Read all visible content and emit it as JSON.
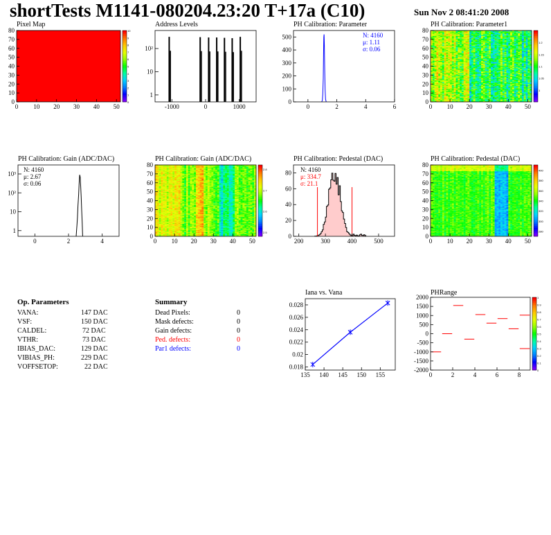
{
  "header": {
    "title": "shortTests M1141-080204.23:20 T+17a (C10)",
    "date": "Sun Nov  2 08:41:20 2008"
  },
  "colors": {
    "pixel_map": "#ff0000",
    "hist_line": "#000000",
    "blue_stat": "#0000ff",
    "red_stat": "#ff0000",
    "pedestal_fill": "#ffcccc",
    "iana_line": "#0000ff",
    "phrange_mark": "#ff0000"
  },
  "op_parameters": {
    "heading": "Op. Parameters",
    "rows": [
      {
        "name": "VANA:",
        "value": "147 DAC"
      },
      {
        "name": "VSF:",
        "value": "150 DAC"
      },
      {
        "name": "CALDEL:",
        "value": "72 DAC"
      },
      {
        "name": "VTHR:",
        "value": "73 DAC"
      },
      {
        "name": "IBIAS_DAC:",
        "value": "129 DAC"
      },
      {
        "name": "VIBIAS_PH:",
        "value": "229 DAC"
      },
      {
        "name": "VOFFSETOP:",
        "value": "22 DAC"
      }
    ]
  },
  "summary": {
    "heading": "Summary",
    "rows": [
      {
        "name": "Dead Pixels:",
        "value": "0",
        "color": "#000000"
      },
      {
        "name": "Mask defects:",
        "value": "0",
        "color": "#000000"
      },
      {
        "name": "Gain defects:",
        "value": "0",
        "color": "#000000"
      },
      {
        "name": "Ped. defects:",
        "value": "0",
        "color": "#ff0000"
      },
      {
        "name": "Par1 defects:",
        "value": "0",
        "color": "#0000ff"
      }
    ]
  },
  "chart_data": [
    {
      "id": "pixel_map",
      "type": "heatmap",
      "title": "Pixel Map",
      "xlim": [
        0,
        52
      ],
      "ylim": [
        0,
        80
      ],
      "xticks": [
        "0",
        "10",
        "20",
        "30",
        "40",
        "50"
      ],
      "yticks": [
        "0",
        "10",
        "20",
        "30",
        "40",
        "50",
        "60",
        "70",
        "80"
      ],
      "zlim": [
        0,
        10
      ],
      "zticks": [
        "0",
        "1",
        "2",
        "3",
        "4",
        "5",
        "6",
        "7",
        "8",
        "9",
        "10"
      ],
      "uniform_value": 10
    },
    {
      "id": "address_levels",
      "type": "bar",
      "title": "Address Levels",
      "xlim": [
        -1500,
        1500
      ],
      "ylog": true,
      "xticks": [
        "-1000",
        "0",
        "1000"
      ],
      "yticks": [
        "1",
        "10",
        "10²"
      ],
      "peaks": [
        {
          "x": -1080,
          "count": 320
        },
        {
          "x": -160,
          "count": 310
        },
        {
          "x": 90,
          "count": 300
        },
        {
          "x": 330,
          "count": 300
        },
        {
          "x": 560,
          "count": 290
        },
        {
          "x": 790,
          "count": 280
        },
        {
          "x": 1030,
          "count": 320
        }
      ]
    },
    {
      "id": "ph_param",
      "type": "histogram",
      "title": "PH Calibration: Parameter",
      "xlim": [
        -1,
        6
      ],
      "ylim": [
        0,
        550
      ],
      "xticks": [
        "0",
        "2",
        "4",
        "6"
      ],
      "yticks": [
        "0",
        "100",
        "200",
        "300",
        "400",
        "500"
      ],
      "stats": {
        "n": "N: 4160",
        "mean": "μ: 1.11",
        "sigma": "σ: 0.06",
        "color": "#0000ff"
      },
      "mean": 1.11,
      "sigma": 0.06,
      "peak": 520
    },
    {
      "id": "ph_param1",
      "type": "heatmap",
      "title": "PH Calibration: Parameter1",
      "xlim": [
        0,
        52
      ],
      "ylim": [
        0,
        80
      ],
      "xticks": [
        "0",
        "10",
        "20",
        "30",
        "40",
        "50"
      ],
      "yticks": [
        "0",
        "10",
        "20",
        "30",
        "40",
        "50",
        "60",
        "70",
        "80"
      ],
      "zlim": [
        0.95,
        1.25
      ],
      "zticks": [
        "1",
        "1.05",
        "1.1",
        "1.15",
        "1.2"
      ]
    },
    {
      "id": "gain_hist",
      "type": "histogram",
      "title": "PH Calibration: Gain (ADC/DAC)",
      "xlim": [
        -1,
        5
      ],
      "ylog": true,
      "xticks": [
        "0",
        "2",
        "4"
      ],
      "yticks": [
        "1",
        "10",
        "10²",
        "10³"
      ],
      "stats": {
        "n": "N: 4160",
        "mean": "μ: 2.67",
        "sigma": "σ: 0.06",
        "color": "#000000"
      },
      "mean": 2.67,
      "sigma": 0.06,
      "peak": 900
    },
    {
      "id": "gain_map",
      "type": "heatmap",
      "title": "PH Calibration: Gain (ADC/DAC)",
      "xlim": [
        0,
        52
      ],
      "ylim": [
        0,
        80
      ],
      "xticks": [
        "0",
        "10",
        "20",
        "30",
        "40",
        "50"
      ],
      "yticks": [
        "0",
        "10",
        "20",
        "30",
        "40",
        "50",
        "60",
        "70",
        "80"
      ],
      "zlim": [
        2.48,
        2.82
      ],
      "zticks": [
        "2.5",
        "2.6",
        "2.7",
        "2.8"
      ]
    },
    {
      "id": "ped_hist",
      "type": "histogram",
      "title": "PH Calibration: Pedestal (DAC)",
      "xlim": [
        180,
        560
      ],
      "ylim": [
        0,
        90
      ],
      "xticks": [
        "200",
        "300",
        "400",
        "500"
      ],
      "yticks": [
        "0",
        "20",
        "40",
        "60",
        "80"
      ],
      "stats": {
        "n": "N: 4160",
        "mean": "μ: 334.7",
        "sigma": "σ: 21.1"
      },
      "mean": 334.7,
      "sigma": 21.1,
      "peak": 85,
      "cut_lines": [
        270,
        400
      ]
    },
    {
      "id": "ped_map",
      "type": "heatmap",
      "title": "PH Calibration: Pedestal (DAC)",
      "xlim": [
        0,
        52
      ],
      "ylim": [
        0,
        80
      ],
      "xticks": [
        "0",
        "10",
        "20",
        "30",
        "40",
        "50"
      ],
      "yticks": [
        "0",
        "10",
        "20",
        "30",
        "40",
        "50",
        "60",
        "70",
        "80"
      ],
      "zlim": [
        270,
        410
      ],
      "zticks": [
        "280",
        "300",
        "320",
        "340",
        "360",
        "380",
        "400"
      ]
    },
    {
      "id": "iana_vana",
      "type": "line",
      "title": "Iana vs. Vana",
      "xlim": [
        135,
        159
      ],
      "ylim": [
        0.0175,
        0.029
      ],
      "xticks": [
        "135",
        "140",
        "145",
        "150",
        "155"
      ],
      "yticks": [
        "0.018",
        "0.02",
        "0.022",
        "0.024",
        "0.026",
        "0.028"
      ],
      "points": [
        {
          "x": 137,
          "y": 0.0184
        },
        {
          "x": 147,
          "y": 0.0236
        },
        {
          "x": 157,
          "y": 0.0283
        }
      ]
    },
    {
      "id": "ph_range",
      "type": "scatter",
      "title": "PHRange",
      "xlim": [
        0,
        9
      ],
      "ylim": [
        -2000,
        2000
      ],
      "xticks": [
        "0",
        "2",
        "4",
        "6",
        "8"
      ],
      "yticks": [
        "-2000",
        "-1500",
        "-1000",
        "-500",
        "0",
        "500",
        "1000",
        "1500",
        "2000"
      ],
      "zlim": [
        0,
        1
      ],
      "zticks": [
        "0",
        "0.1",
        "0.2",
        "0.3",
        "0.4",
        "0.5",
        "0.6",
        "0.7",
        "0.8",
        "0.9",
        "1"
      ],
      "points": [
        {
          "x": 0.5,
          "y": -1000
        },
        {
          "x": 1.5,
          "y": 0
        },
        {
          "x": 2.5,
          "y": 1550
        },
        {
          "x": 3.5,
          "y": -300
        },
        {
          "x": 4.5,
          "y": 1050
        },
        {
          "x": 5.5,
          "y": 580
        },
        {
          "x": 6.5,
          "y": 830
        },
        {
          "x": 7.5,
          "y": 270
        },
        {
          "x": 8.5,
          "y": 1020
        },
        {
          "x": 8.5,
          "y": -820
        }
      ]
    }
  ]
}
